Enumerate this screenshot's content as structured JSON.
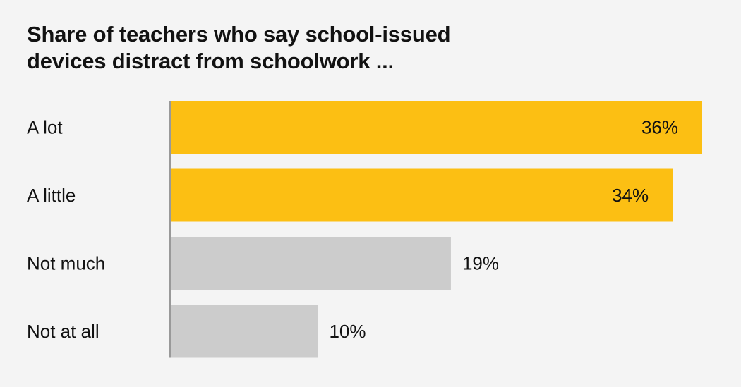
{
  "chart_data": {
    "type": "bar",
    "orientation": "horizontal",
    "title": "Share of teachers who say school-issued devices distract from schoolwork ...",
    "categories": [
      "A lot",
      "A little",
      "Not much",
      "Not at all"
    ],
    "values": [
      36,
      34,
      19,
      10
    ],
    "value_labels": [
      "36%",
      "34%",
      "19%",
      "10%"
    ],
    "highlighted": [
      true,
      true,
      false,
      false
    ],
    "xlim": [
      0,
      36
    ],
    "grid": false,
    "legend": "none",
    "colors": {
      "highlight": "#fcbf13",
      "muted": "#cccccc",
      "axis": "#999999",
      "text": "#121212",
      "background": "#f4f4f4"
    }
  }
}
